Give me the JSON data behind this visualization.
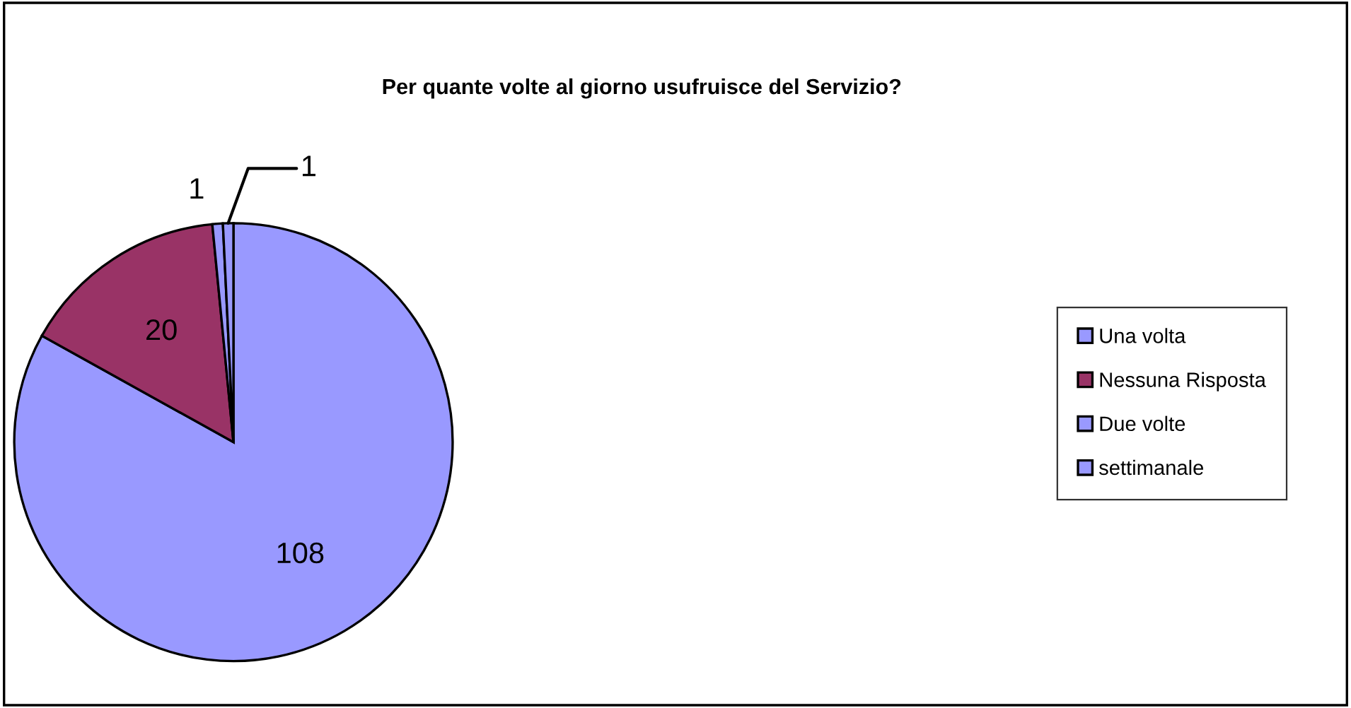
{
  "chart_data": {
    "type": "pie",
    "title": "Per quante volte al giorno usufruisce del Servizio?",
    "categories": [
      "Una volta",
      "Nessuna Risposta",
      "Due volte",
      "settimanale"
    ],
    "values": [
      108,
      20,
      1,
      1
    ],
    "colors": [
      "#9999ff",
      "#993366",
      "#9999ff",
      "#9999ff"
    ],
    "data_labels": true,
    "legend": "right"
  }
}
